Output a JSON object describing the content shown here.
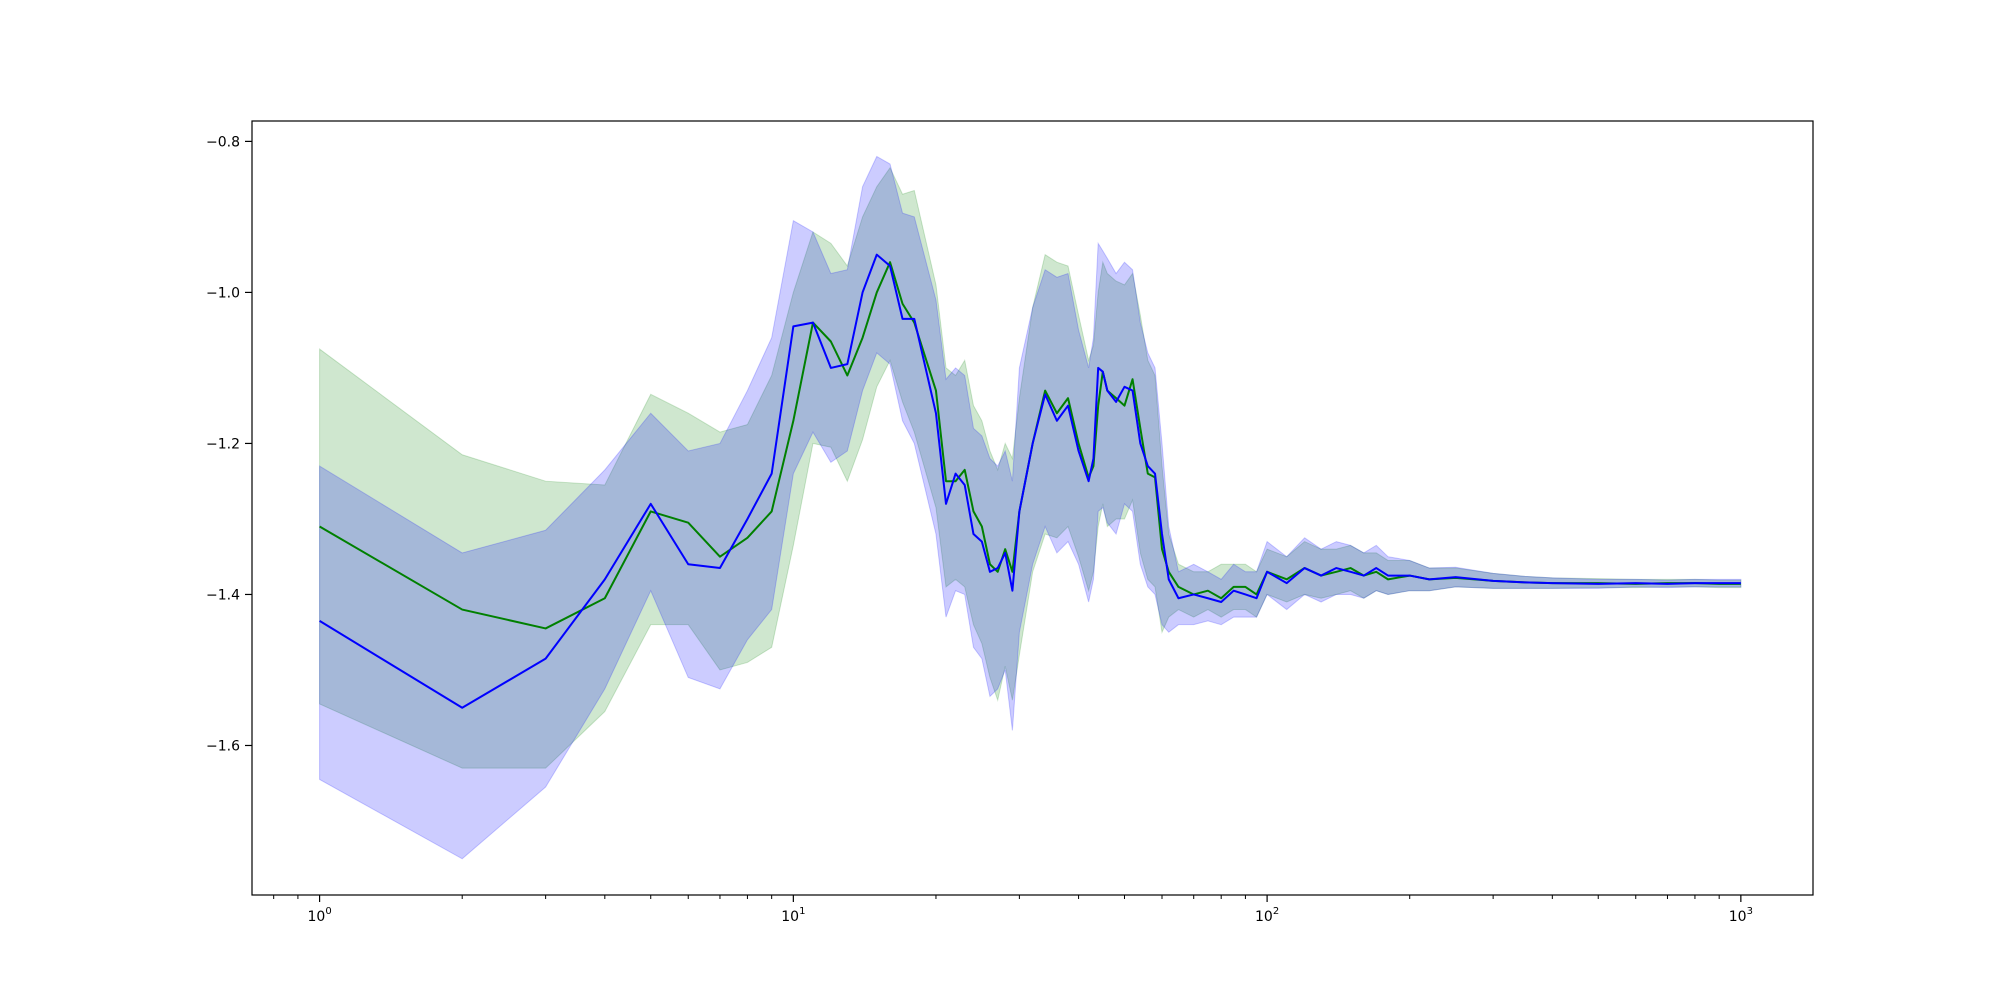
{
  "chart_data": {
    "type": "line",
    "title": "",
    "xlabel": "",
    "ylabel": "",
    "x_scale": "log",
    "xlim": [
      0.72,
      1420
    ],
    "ylim": [
      -1.798,
      -0.773
    ],
    "grid": false,
    "legend": null,
    "x_ticks": [
      {
        "value": 1,
        "base": "10",
        "exp": "0"
      },
      {
        "value": 10,
        "base": "10",
        "exp": "1"
      },
      {
        "value": 100,
        "base": "10",
        "exp": "2"
      },
      {
        "value": 1000,
        "base": "10",
        "exp": "3"
      }
    ],
    "y_ticks": [
      {
        "value": -0.8,
        "label": "−0.8"
      },
      {
        "value": -1.0,
        "label": "−1.0"
      },
      {
        "value": -1.2,
        "label": "−1.2"
      },
      {
        "value": -1.4,
        "label": "−1.4"
      },
      {
        "value": -1.6,
        "label": "−1.6"
      }
    ],
    "series": [
      {
        "color": "#008000",
        "band_color": "#008000",
        "band_opacity": 0.19,
        "points": [
          [
            1,
            -1.31,
            -1.545,
            -1.075
          ],
          [
            2,
            -1.42,
            -1.63,
            -1.215
          ],
          [
            3,
            -1.445,
            -1.63,
            -1.25
          ],
          [
            4,
            -1.405,
            -1.555,
            -1.255
          ],
          [
            5,
            -1.29,
            -1.44,
            -1.135
          ],
          [
            6,
            -1.305,
            -1.44,
            -1.16
          ],
          [
            7,
            -1.35,
            -1.5,
            -1.185
          ],
          [
            8,
            -1.325,
            -1.49,
            -1.175
          ],
          [
            9,
            -1.29,
            -1.47,
            -1.11
          ],
          [
            10,
            -1.17,
            -1.335,
            -1.0
          ],
          [
            11,
            -1.04,
            -1.2,
            -0.92
          ],
          [
            12,
            -1.065,
            -1.205,
            -0.935
          ],
          [
            13,
            -1.11,
            -1.25,
            -0.965
          ],
          [
            14,
            -1.06,
            -1.195,
            -0.9
          ],
          [
            15,
            -1.0,
            -1.125,
            -0.86
          ],
          [
            16,
            -0.96,
            -1.09,
            -0.835
          ],
          [
            17,
            -1.015,
            -1.145,
            -0.87
          ],
          [
            18,
            -1.04,
            -1.185,
            -0.865
          ],
          [
            20,
            -1.13,
            -1.285,
            -0.99
          ],
          [
            21,
            -1.25,
            -1.39,
            -1.1
          ],
          [
            22,
            -1.25,
            -1.38,
            -1.11
          ],
          [
            23,
            -1.235,
            -1.39,
            -1.09
          ],
          [
            24,
            -1.29,
            -1.44,
            -1.15
          ],
          [
            25,
            -1.31,
            -1.465,
            -1.17
          ],
          [
            26,
            -1.36,
            -1.51,
            -1.21
          ],
          [
            27,
            -1.37,
            -1.54,
            -1.235
          ],
          [
            28,
            -1.34,
            -1.495,
            -1.2
          ],
          [
            29,
            -1.37,
            -1.54,
            -1.22
          ],
          [
            30,
            -1.29,
            -1.48,
            -1.14
          ],
          [
            32,
            -1.2,
            -1.37,
            -1.02
          ],
          [
            34,
            -1.13,
            -1.32,
            -0.95
          ],
          [
            36,
            -1.16,
            -1.325,
            -0.96
          ],
          [
            38,
            -1.14,
            -1.31,
            -0.965
          ],
          [
            40,
            -1.2,
            -1.35,
            -1.03
          ],
          [
            42,
            -1.245,
            -1.395,
            -1.09
          ],
          [
            43,
            -1.23,
            -1.37,
            -1.07
          ],
          [
            44,
            -1.15,
            -1.31,
            -1.0
          ],
          [
            45,
            -1.105,
            -1.28,
            -0.96
          ],
          [
            46,
            -1.13,
            -1.31,
            -0.975
          ],
          [
            48,
            -1.14,
            -1.3,
            -0.985
          ],
          [
            50,
            -1.15,
            -1.3,
            -0.99
          ],
          [
            52,
            -1.115,
            -1.275,
            -0.975
          ],
          [
            54,
            -1.18,
            -1.345,
            -1.03
          ],
          [
            56,
            -1.24,
            -1.38,
            -1.09
          ],
          [
            58,
            -1.245,
            -1.39,
            -1.11
          ],
          [
            60,
            -1.34,
            -1.45,
            -1.23
          ],
          [
            62,
            -1.37,
            -1.43,
            -1.32
          ],
          [
            65,
            -1.39,
            -1.42,
            -1.36
          ],
          [
            70,
            -1.4,
            -1.43,
            -1.37
          ],
          [
            75,
            -1.395,
            -1.42,
            -1.37
          ],
          [
            80,
            -1.405,
            -1.43,
            -1.36
          ],
          [
            85,
            -1.39,
            -1.42,
            -1.36
          ],
          [
            90,
            -1.39,
            -1.42,
            -1.36
          ],
          [
            95,
            -1.4,
            -1.43,
            -1.37
          ],
          [
            100,
            -1.37,
            -1.4,
            -1.34
          ],
          [
            110,
            -1.38,
            -1.41,
            -1.35
          ],
          [
            120,
            -1.365,
            -1.4,
            -1.33
          ],
          [
            130,
            -1.375,
            -1.405,
            -1.34
          ],
          [
            140,
            -1.37,
            -1.4,
            -1.34
          ],
          [
            150,
            -1.365,
            -1.395,
            -1.335
          ],
          [
            160,
            -1.375,
            -1.405,
            -1.345
          ],
          [
            170,
            -1.37,
            -1.395,
            -1.345
          ],
          [
            180,
            -1.38,
            -1.4,
            -1.355
          ],
          [
            200,
            -1.375,
            -1.395,
            -1.355
          ],
          [
            220,
            -1.38,
            -1.395,
            -1.365
          ],
          [
            250,
            -1.378,
            -1.39,
            -1.365
          ],
          [
            300,
            -1.382,
            -1.392,
            -1.372
          ],
          [
            350,
            -1.384,
            -1.392,
            -1.376
          ],
          [
            400,
            -1.385,
            -1.392,
            -1.378
          ],
          [
            500,
            -1.385,
            -1.391,
            -1.379
          ],
          [
            600,
            -1.386,
            -1.391,
            -1.38
          ],
          [
            700,
            -1.385,
            -1.39,
            -1.38
          ],
          [
            800,
            -1.385,
            -1.39,
            -1.38
          ],
          [
            900,
            -1.386,
            -1.391,
            -1.381
          ],
          [
            1000,
            -1.386,
            -1.391,
            -1.381
          ]
        ]
      },
      {
        "color": "#0000ff",
        "band_color": "#0000ff",
        "band_opacity": 0.2,
        "points": [
          [
            1,
            -1.435,
            -1.645,
            -1.23
          ],
          [
            2,
            -1.55,
            -1.75,
            -1.345
          ],
          [
            3,
            -1.485,
            -1.655,
            -1.315
          ],
          [
            4,
            -1.38,
            -1.525,
            -1.235
          ],
          [
            5,
            -1.28,
            -1.395,
            -1.16
          ],
          [
            6,
            -1.36,
            -1.51,
            -1.21
          ],
          [
            7,
            -1.365,
            -1.525,
            -1.2
          ],
          [
            8,
            -1.3,
            -1.46,
            -1.13
          ],
          [
            9,
            -1.24,
            -1.42,
            -1.06
          ],
          [
            10,
            -1.045,
            -1.24,
            -0.905
          ],
          [
            11,
            -1.04,
            -1.185,
            -0.92
          ],
          [
            12,
            -1.1,
            -1.225,
            -0.975
          ],
          [
            13,
            -1.095,
            -1.21,
            -0.97
          ],
          [
            14,
            -1.0,
            -1.13,
            -0.86
          ],
          [
            15,
            -0.95,
            -1.08,
            -0.82
          ],
          [
            16,
            -0.965,
            -1.095,
            -0.83
          ],
          [
            17,
            -1.035,
            -1.17,
            -0.895
          ],
          [
            18,
            -1.035,
            -1.2,
            -0.9
          ],
          [
            20,
            -1.16,
            -1.32,
            -1.01
          ],
          [
            21,
            -1.28,
            -1.43,
            -1.115
          ],
          [
            22,
            -1.24,
            -1.395,
            -1.1
          ],
          [
            23,
            -1.255,
            -1.4,
            -1.11
          ],
          [
            24,
            -1.32,
            -1.47,
            -1.18
          ],
          [
            25,
            -1.33,
            -1.485,
            -1.19
          ],
          [
            26,
            -1.37,
            -1.535,
            -1.22
          ],
          [
            27,
            -1.365,
            -1.525,
            -1.23
          ],
          [
            28,
            -1.345,
            -1.5,
            -1.21
          ],
          [
            29,
            -1.395,
            -1.58,
            -1.25
          ],
          [
            30,
            -1.29,
            -1.45,
            -1.1
          ],
          [
            32,
            -1.2,
            -1.36,
            -1.02
          ],
          [
            34,
            -1.135,
            -1.31,
            -0.97
          ],
          [
            36,
            -1.17,
            -1.345,
            -0.98
          ],
          [
            38,
            -1.15,
            -1.33,
            -0.975
          ],
          [
            40,
            -1.21,
            -1.36,
            -1.05
          ],
          [
            42,
            -1.25,
            -1.41,
            -1.1
          ],
          [
            43,
            -1.22,
            -1.38,
            -1.06
          ],
          [
            44,
            -1.1,
            -1.29,
            -0.935
          ],
          [
            45,
            -1.105,
            -1.285,
            -0.945
          ],
          [
            46,
            -1.13,
            -1.305,
            -0.955
          ],
          [
            48,
            -1.145,
            -1.32,
            -0.975
          ],
          [
            50,
            -1.125,
            -1.28,
            -0.96
          ],
          [
            52,
            -1.13,
            -1.29,
            -0.97
          ],
          [
            54,
            -1.2,
            -1.36,
            -1.04
          ],
          [
            56,
            -1.23,
            -1.39,
            -1.08
          ],
          [
            58,
            -1.24,
            -1.4,
            -1.1
          ],
          [
            60,
            -1.32,
            -1.44,
            -1.2
          ],
          [
            62,
            -1.38,
            -1.45,
            -1.31
          ],
          [
            65,
            -1.405,
            -1.44,
            -1.37
          ],
          [
            70,
            -1.4,
            -1.44,
            -1.36
          ],
          [
            75,
            -1.405,
            -1.435,
            -1.37
          ],
          [
            80,
            -1.41,
            -1.44,
            -1.38
          ],
          [
            85,
            -1.395,
            -1.43,
            -1.36
          ],
          [
            90,
            -1.4,
            -1.43,
            -1.37
          ],
          [
            95,
            -1.405,
            -1.43,
            -1.37
          ],
          [
            100,
            -1.37,
            -1.4,
            -1.33
          ],
          [
            110,
            -1.385,
            -1.42,
            -1.35
          ],
          [
            120,
            -1.365,
            -1.4,
            -1.325
          ],
          [
            130,
            -1.375,
            -1.41,
            -1.34
          ],
          [
            140,
            -1.365,
            -1.4,
            -1.33
          ],
          [
            150,
            -1.37,
            -1.4,
            -1.335
          ],
          [
            160,
            -1.375,
            -1.405,
            -1.345
          ],
          [
            170,
            -1.365,
            -1.395,
            -1.335
          ],
          [
            180,
            -1.375,
            -1.4,
            -1.35
          ],
          [
            200,
            -1.375,
            -1.395,
            -1.355
          ],
          [
            220,
            -1.38,
            -1.395,
            -1.365
          ],
          [
            250,
            -1.377,
            -1.39,
            -1.364
          ],
          [
            300,
            -1.382,
            -1.392,
            -1.372
          ],
          [
            350,
            -1.384,
            -1.392,
            -1.376
          ],
          [
            400,
            -1.385,
            -1.392,
            -1.378
          ],
          [
            500,
            -1.386,
            -1.392,
            -1.38
          ],
          [
            600,
            -1.385,
            -1.39,
            -1.38
          ],
          [
            700,
            -1.386,
            -1.391,
            -1.381
          ],
          [
            800,
            -1.385,
            -1.39,
            -1.38
          ],
          [
            900,
            -1.385,
            -1.39,
            -1.38
          ],
          [
            1000,
            -1.385,
            -1.39,
            -1.38
          ]
        ]
      }
    ]
  }
}
